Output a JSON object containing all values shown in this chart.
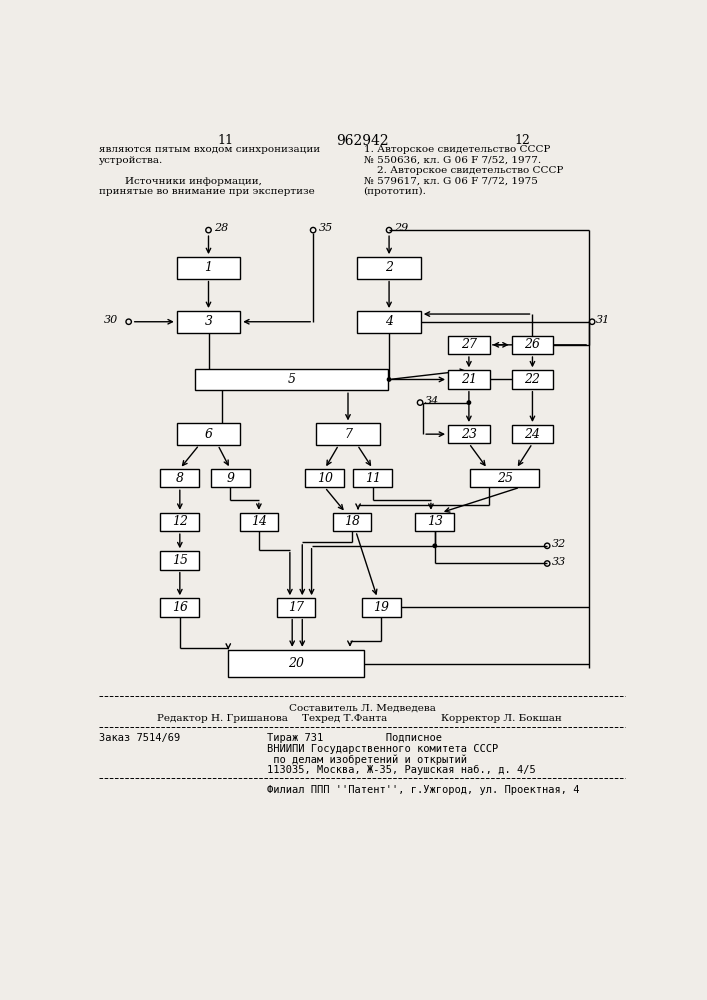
{
  "page_num_left": "11",
  "page_num_center": "962942",
  "page_num_right": "12",
  "left_text": "являются пятым входом синхронизации\nустройства.\n\n        Источники информации,\nпринятые во внимание при экспертизе",
  "right_text": "1. Авторское свидетельство СССР\n№ 550636, кл. G 06 F 7/52, 1977.\n    2. Авторское свидетельство СССР\n№ 579617, кл. G 06 F 7/72, 1975\n(прототип).",
  "footer_line1": "Составитель Л. Медведева",
  "footer_editor": "Редактор Н. Гришанова",
  "footer_tech": "Техред Т.Фанта",
  "footer_corrector": "Корректор Л. Бокшан",
  "footer_order": "Заказ 7514/69",
  "footer_tirazh": "Тираж 731          Подписное",
  "footer_vniip": "ВНИИПИ Государственного комитета СССР",
  "footer_po": " по делам изобретений и открытий",
  "footer_addr": "113035, Москва, Ж-35, Раушская наб., д. 4/5",
  "footer_filial": "Филиал ППП ''Патент'', г.Ужгород, ул. Проектная, 4",
  "bg_color": "#f0ede8",
  "box_color": "#ffffff",
  "line_color": "#000000",
  "text_color": "#000000"
}
